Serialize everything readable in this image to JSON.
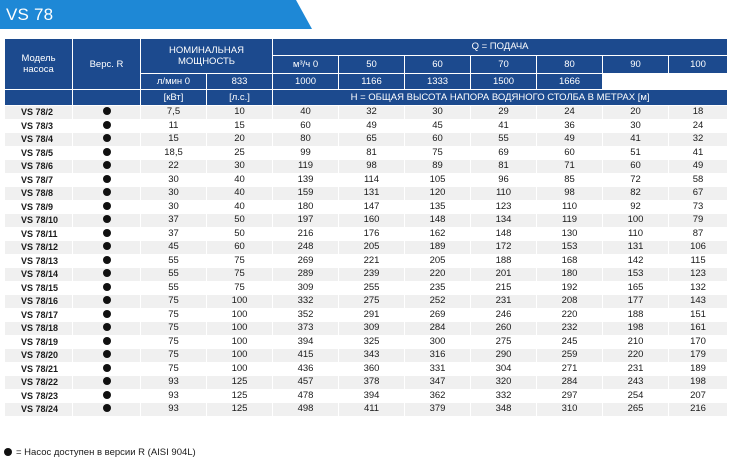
{
  "title": "VS 78",
  "header": {
    "model": "Модель насоса",
    "version": "Верс. R",
    "power": "НОМИНАЛЬНАЯ МОЩНОСТЬ",
    "flow": "Q = ПОДАЧА",
    "m3h_label": "м³/ч 0",
    "lmin_label": "л/мин 0",
    "m3h": [
      "50",
      "60",
      "70",
      "80",
      "90",
      "100"
    ],
    "lmin": [
      "833",
      "1000",
      "1166",
      "1333",
      "1500",
      "1666"
    ],
    "kw": "[кВт]",
    "hp": "[л.с.]",
    "head": "H = ОБЩАЯ ВЫСОТА НАПОРА ВОДЯНОГО СТОЛБА В МЕТРАХ [м]"
  },
  "rows": [
    [
      "VS 78/2",
      "7,5",
      "10",
      "40",
      "32",
      "30",
      "29",
      "24",
      "20",
      "18"
    ],
    [
      "VS 78/3",
      "11",
      "15",
      "60",
      "49",
      "45",
      "41",
      "36",
      "30",
      "24"
    ],
    [
      "VS 78/4",
      "15",
      "20",
      "80",
      "65",
      "60",
      "55",
      "49",
      "41",
      "32"
    ],
    [
      "VS 78/5",
      "18,5",
      "25",
      "99",
      "81",
      "75",
      "69",
      "60",
      "51",
      "41"
    ],
    [
      "VS 78/6",
      "22",
      "30",
      "119",
      "98",
      "89",
      "81",
      "71",
      "60",
      "49"
    ],
    [
      "VS 78/7",
      "30",
      "40",
      "139",
      "114",
      "105",
      "96",
      "85",
      "72",
      "58"
    ],
    [
      "VS 78/8",
      "30",
      "40",
      "159",
      "131",
      "120",
      "110",
      "98",
      "82",
      "67"
    ],
    [
      "VS 78/9",
      "30",
      "40",
      "180",
      "147",
      "135",
      "123",
      "110",
      "92",
      "73"
    ],
    [
      "VS 78/10",
      "37",
      "50",
      "197",
      "160",
      "148",
      "134",
      "119",
      "100",
      "79"
    ],
    [
      "VS 78/11",
      "37",
      "50",
      "216",
      "176",
      "162",
      "148",
      "130",
      "110",
      "87"
    ],
    [
      "VS 78/12",
      "45",
      "60",
      "248",
      "205",
      "189",
      "172",
      "153",
      "131",
      "106"
    ],
    [
      "VS 78/13",
      "55",
      "75",
      "269",
      "221",
      "205",
      "188",
      "168",
      "142",
      "115"
    ],
    [
      "VS 78/14",
      "55",
      "75",
      "289",
      "239",
      "220",
      "201",
      "180",
      "153",
      "123"
    ],
    [
      "VS 78/15",
      "55",
      "75",
      "309",
      "255",
      "235",
      "215",
      "192",
      "165",
      "132"
    ],
    [
      "VS 78/16",
      "75",
      "100",
      "332",
      "275",
      "252",
      "231",
      "208",
      "177",
      "143"
    ],
    [
      "VS 78/17",
      "75",
      "100",
      "352",
      "291",
      "269",
      "246",
      "220",
      "188",
      "151"
    ],
    [
      "VS 78/18",
      "75",
      "100",
      "373",
      "309",
      "284",
      "260",
      "232",
      "198",
      "161"
    ],
    [
      "VS 78/19",
      "75",
      "100",
      "394",
      "325",
      "300",
      "275",
      "245",
      "210",
      "170"
    ],
    [
      "VS 78/20",
      "75",
      "100",
      "415",
      "343",
      "316",
      "290",
      "259",
      "220",
      "179"
    ],
    [
      "VS 78/21",
      "75",
      "100",
      "436",
      "360",
      "331",
      "304",
      "271",
      "231",
      "189"
    ],
    [
      "VS 78/22",
      "93",
      "125",
      "457",
      "378",
      "347",
      "320",
      "284",
      "243",
      "198"
    ],
    [
      "VS 78/23",
      "93",
      "125",
      "478",
      "394",
      "362",
      "332",
      "297",
      "254",
      "207"
    ],
    [
      "VS 78/24",
      "93",
      "125",
      "498",
      "411",
      "379",
      "348",
      "310",
      "265",
      "216"
    ]
  ],
  "footnote": "= Насос доступен в версии R (AISI 904L)"
}
